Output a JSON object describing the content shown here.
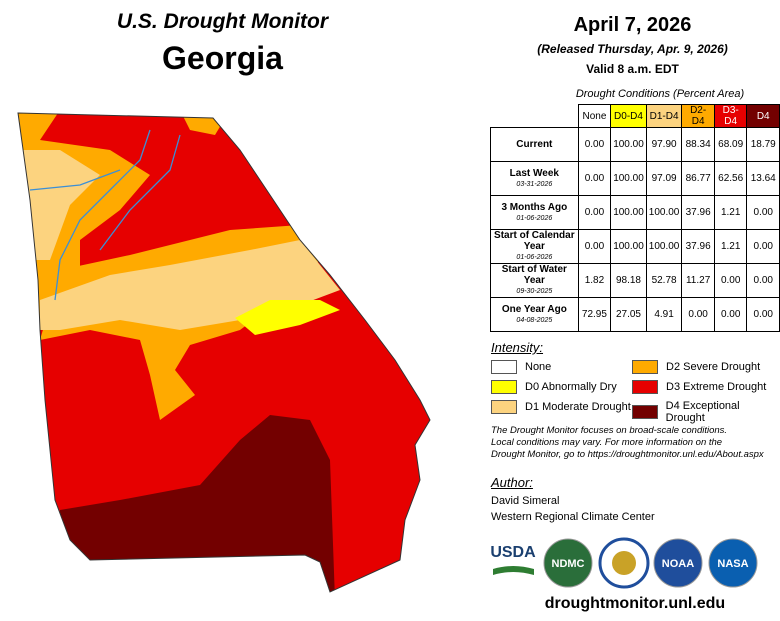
{
  "header": {
    "title": "U.S. Drought Monitor",
    "state": "Georgia",
    "date": "April 7, 2026",
    "released": "(Released Thursday, Apr. 9, 2026)",
    "valid": "Valid 8 a.m. EDT"
  },
  "table": {
    "caption": "Drought Conditions (Percent Area)",
    "columns": [
      {
        "label": "None",
        "color": "#ffffff",
        "text": "#000000"
      },
      {
        "label": "D0-D4",
        "color": "#ffff00",
        "text": "#000000"
      },
      {
        "label": "D1-D4",
        "color": "#fcd37f",
        "text": "#000000"
      },
      {
        "label": "D2-D4",
        "color": "#ffaa00",
        "text": "#000000"
      },
      {
        "label": "D3-D4",
        "color": "#e60000",
        "text": "#ffffff"
      },
      {
        "label": "D4",
        "color": "#730000",
        "text": "#ffffff"
      }
    ],
    "rows": [
      {
        "label": "Current",
        "values": [
          "0.00",
          "100.00",
          "97.90",
          "88.34",
          "68.09",
          "18.79"
        ]
      },
      {
        "label": "Last Week",
        "date": "03-31-2026",
        "values": [
          "0.00",
          "100.00",
          "97.09",
          "86.77",
          "62.56",
          "13.64"
        ]
      },
      {
        "label": "3 Months Ago",
        "date": "01-06-2026",
        "values": [
          "0.00",
          "100.00",
          "100.00",
          "37.96",
          "1.21",
          "0.00"
        ]
      },
      {
        "label": "Start of Calendar Year",
        "date": "01-06-2026",
        "values": [
          "0.00",
          "100.00",
          "100.00",
          "37.96",
          "1.21",
          "0.00"
        ]
      },
      {
        "label": "Start of Water Year",
        "date": "09-30-2025",
        "values": [
          "1.82",
          "98.18",
          "52.78",
          "11.27",
          "0.00",
          "0.00"
        ]
      },
      {
        "label": "One Year Ago",
        "date": "04-08-2025",
        "values": [
          "72.95",
          "27.05",
          "4.91",
          "0.00",
          "0.00",
          "0.00"
        ]
      }
    ]
  },
  "legend": {
    "title": "Intensity:",
    "items": [
      {
        "label": "None",
        "color": "#ffffff"
      },
      {
        "label": "D0 Abnormally Dry",
        "color": "#ffff00"
      },
      {
        "label": "D1 Moderate Drought",
        "color": "#fcd37f"
      },
      {
        "label": "D2 Severe Drought",
        "color": "#ffaa00"
      },
      {
        "label": "D3 Extreme Drought",
        "color": "#e60000"
      },
      {
        "label": "D4 Exceptional Drought",
        "color": "#730000"
      }
    ]
  },
  "note": [
    "The Drought Monitor focuses on broad-scale conditions.",
    "Local conditions may vary. For more information on the",
    "Drought Monitor, go to https://droughtmonitor.unl.edu/About.aspx"
  ],
  "author": {
    "label": "Author:",
    "names": [
      "David Simeral",
      "Western Regional Climate Center"
    ]
  },
  "logos": [
    "USDA",
    "NDMC",
    "NOAA",
    "NASA"
  ],
  "footer": {
    "url": "droughtmonitor.unl.edu"
  }
}
